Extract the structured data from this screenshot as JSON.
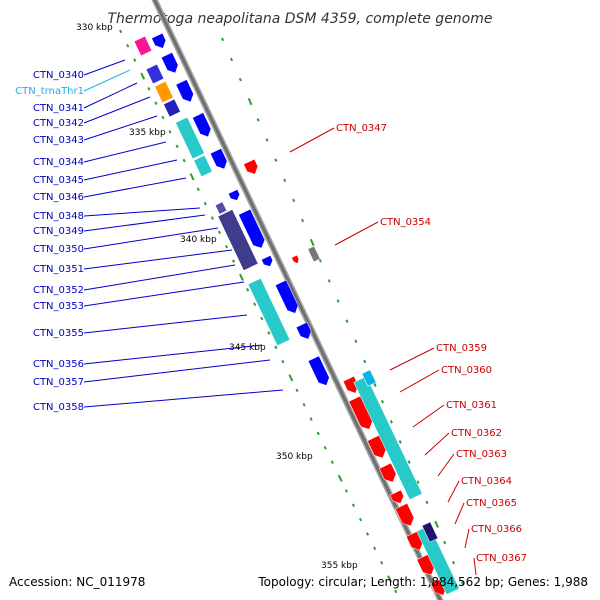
{
  "title": "Thermotoga neapolitana DSM 4359, complete genome",
  "accession": "Accession: NC_011978",
  "topology": "Topology: circular; Length: 1,884,562 bp; Genes: 1,988",
  "colors": {
    "forward": "#ff0000",
    "reverse": "#0000ff",
    "trna": "#0ab4e0",
    "cog_cyan": "#27c9c9",
    "magenta": "#ff1493",
    "orange": "#ff9900",
    "dark_navy": "#201070",
    "backbone": "#808080",
    "green_tick": "#2e9e2e"
  },
  "kbp_ticks": [
    "330 kbp",
    "335 kbp",
    "340 kbp",
    "345 kbp",
    "350 kbp",
    "355 kbp"
  ],
  "left_labels": [
    {
      "name": "CTN_0340",
      "color": "#0000cc"
    },
    {
      "name": "CTN_trnaThr1",
      "color": "#1ab0e6"
    },
    {
      "name": "CTN_0341",
      "color": "#0000cc"
    },
    {
      "name": "CTN_0342",
      "color": "#0000cc"
    },
    {
      "name": "CTN_0343",
      "color": "#0000cc"
    },
    {
      "name": "CTN_0344",
      "color": "#0000cc"
    },
    {
      "name": "CTN_0345",
      "color": "#0000cc"
    },
    {
      "name": "CTN_0346",
      "color": "#0000cc"
    },
    {
      "name": "CTN_0348",
      "color": "#0000cc"
    },
    {
      "name": "CTN_0349",
      "color": "#0000cc"
    },
    {
      "name": "CTN_0350",
      "color": "#0000cc"
    },
    {
      "name": "CTN_0351",
      "color": "#0000cc"
    },
    {
      "name": "CTN_0352",
      "color": "#0000cc"
    },
    {
      "name": "CTN_0353",
      "color": "#0000cc"
    },
    {
      "name": "CTN_0355",
      "color": "#0000cc"
    },
    {
      "name": "CTN_0356",
      "color": "#0000cc"
    },
    {
      "name": "CTN_0357",
      "color": "#0000cc"
    },
    {
      "name": "CTN_0358",
      "color": "#0000cc"
    }
  ],
  "right_labels": [
    {
      "name": "CTN_0347",
      "color": "#cc0000"
    },
    {
      "name": "CTN_0354",
      "color": "#cc0000"
    },
    {
      "name": "CTN_0359",
      "color": "#cc0000"
    },
    {
      "name": "CTN_0360",
      "color": "#cc0000"
    },
    {
      "name": "CTN_0361",
      "color": "#cc0000"
    },
    {
      "name": "CTN_0362",
      "color": "#cc0000"
    },
    {
      "name": "CTN_0363",
      "color": "#cc0000"
    },
    {
      "name": "CTN_0364",
      "color": "#cc0000"
    },
    {
      "name": "CTN_0365",
      "color": "#cc0000"
    },
    {
      "name": "CTN_0366",
      "color": "#cc0000"
    },
    {
      "name": "CTN_0367",
      "color": "#cc0000"
    }
  ]
}
